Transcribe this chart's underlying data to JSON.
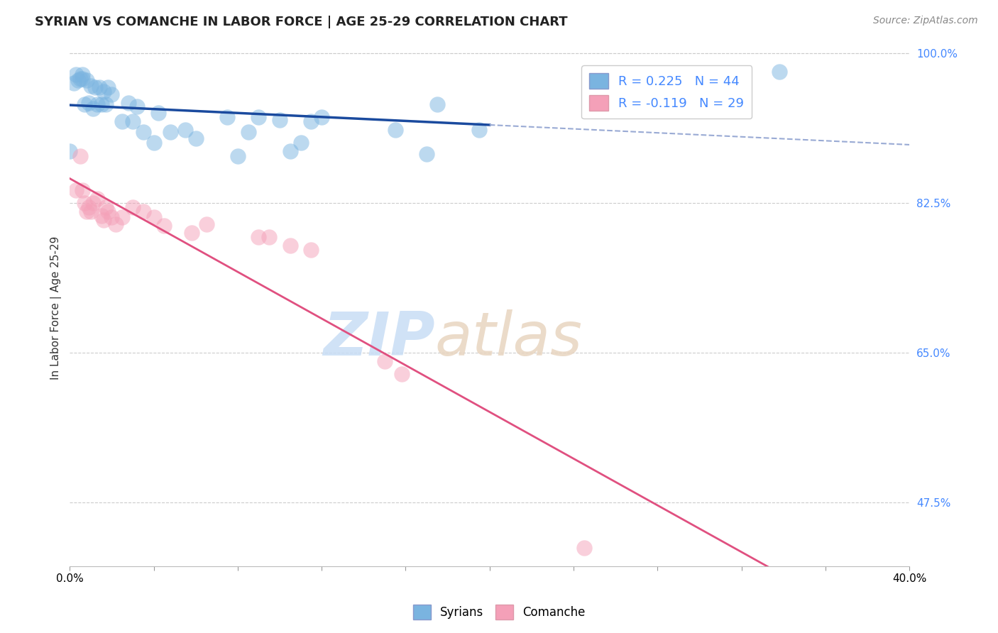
{
  "title": "SYRIAN VS COMANCHE IN LABOR FORCE | AGE 25-29 CORRELATION CHART",
  "source": "Source: ZipAtlas.com",
  "ylabel": "In Labor Force | Age 25-29",
  "xmin": 0.0,
  "xmax": 0.4,
  "ymin": 0.4,
  "ymax": 1.005,
  "yticks": [
    1.0,
    0.825,
    0.65,
    0.475
  ],
  "ytick_labels": [
    "100.0%",
    "82.5%",
    "65.0%",
    "47.5%"
  ],
  "ytick_color": "#4488ff",
  "title_fontsize": 13,
  "source_fontsize": 10,
  "legend_line1": "R = 0.225   N = 44",
  "legend_line2": "R = -0.119   N = 29",
  "syrian_color": "#7ab4e0",
  "comanche_color": "#f4a0b8",
  "regression_blue": "#1a4a9e",
  "regression_pink": "#e05080",
  "dashed_color": "#99aad4",
  "syrian_alpha": 0.5,
  "comanche_alpha": 0.5,
  "syrians_x": [
    0.0,
    0.002,
    0.003,
    0.004,
    0.005,
    0.006,
    0.006,
    0.007,
    0.008,
    0.009,
    0.01,
    0.011,
    0.012,
    0.013,
    0.014,
    0.015,
    0.016,
    0.017,
    0.018,
    0.02,
    0.025,
    0.028,
    0.03,
    0.032,
    0.035,
    0.04,
    0.042,
    0.048,
    0.055,
    0.06,
    0.075,
    0.08,
    0.085,
    0.09,
    0.1,
    0.105,
    0.11,
    0.115,
    0.12,
    0.155,
    0.17,
    0.175,
    0.195,
    0.338
  ],
  "syrians_y": [
    0.885,
    0.965,
    0.975,
    0.968,
    0.97,
    0.975,
    0.97,
    0.94,
    0.968,
    0.942,
    0.962,
    0.935,
    0.96,
    0.94,
    0.96,
    0.94,
    0.955,
    0.94,
    0.96,
    0.952,
    0.92,
    0.942,
    0.92,
    0.938,
    0.908,
    0.895,
    0.93,
    0.908,
    0.91,
    0.9,
    0.925,
    0.88,
    0.908,
    0.925,
    0.922,
    0.885,
    0.895,
    0.92,
    0.925,
    0.91,
    0.882,
    0.94,
    0.91,
    0.978
  ],
  "comanche_x": [
    0.003,
    0.005,
    0.006,
    0.007,
    0.008,
    0.009,
    0.01,
    0.011,
    0.013,
    0.015,
    0.016,
    0.017,
    0.018,
    0.02,
    0.022,
    0.025,
    0.03,
    0.035,
    0.04,
    0.045,
    0.058,
    0.065,
    0.09,
    0.095,
    0.105,
    0.115,
    0.15,
    0.158,
    0.245
  ],
  "comanche_y": [
    0.84,
    0.88,
    0.84,
    0.825,
    0.815,
    0.82,
    0.815,
    0.825,
    0.83,
    0.81,
    0.805,
    0.82,
    0.815,
    0.808,
    0.8,
    0.808,
    0.82,
    0.815,
    0.808,
    0.798,
    0.79,
    0.8,
    0.785,
    0.785,
    0.775,
    0.77,
    0.64,
    0.625,
    0.422
  ]
}
